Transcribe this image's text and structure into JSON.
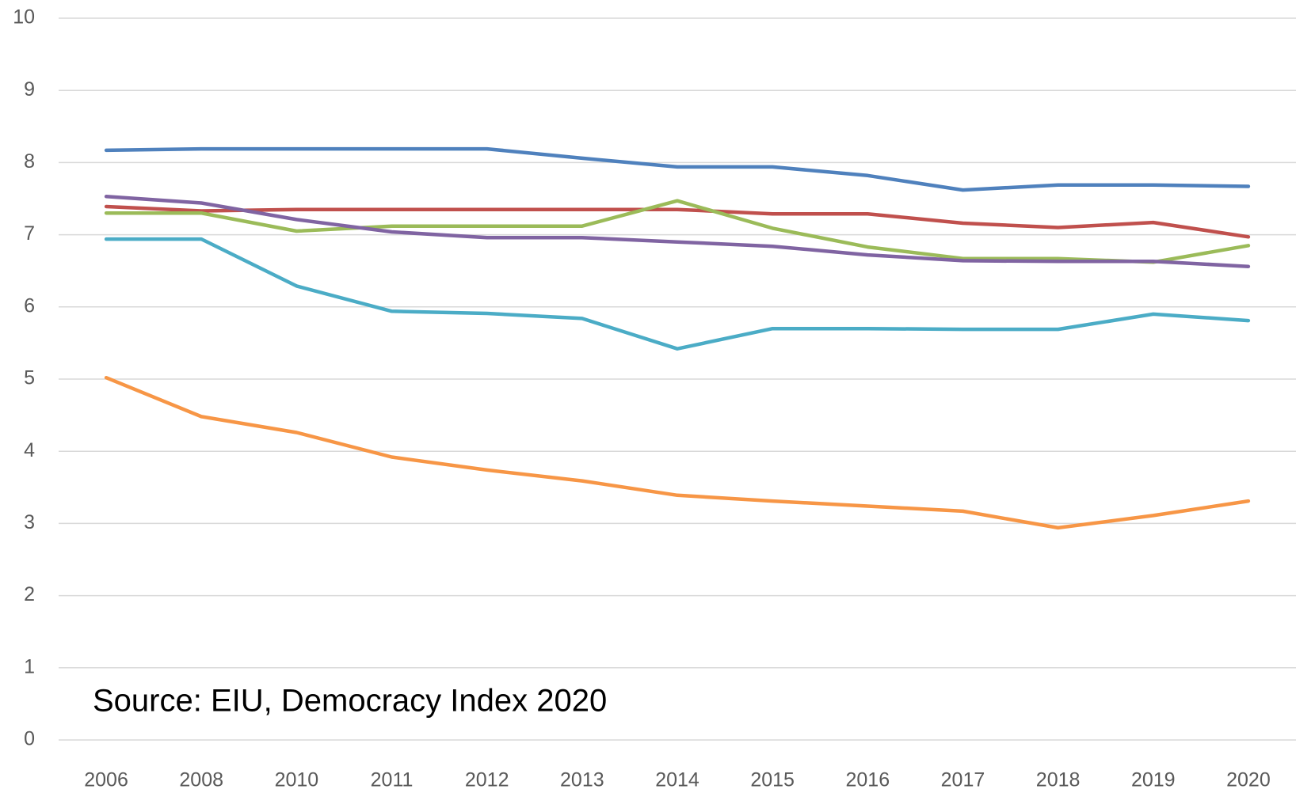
{
  "chart_data": {
    "type": "line",
    "annotation": "Source: EIU, Democracy Index 2020",
    "categories": [
      "2006",
      "2008",
      "2010",
      "2011",
      "2012",
      "2013",
      "2014",
      "2015",
      "2016",
      "2017",
      "2018",
      "2019",
      "2020"
    ],
    "series": [
      {
        "color": "#4f81bd",
        "values": [
          8.17,
          8.19,
          8.19,
          8.19,
          8.19,
          8.06,
          7.94,
          7.94,
          7.82,
          7.62,
          7.69,
          7.69,
          7.67
        ]
      },
      {
        "color": "#c0504d",
        "values": [
          7.39,
          7.33,
          7.35,
          7.35,
          7.35,
          7.35,
          7.35,
          7.29,
          7.29,
          7.16,
          7.1,
          7.17,
          6.97
        ]
      },
      {
        "color": "#9bbb59",
        "values": [
          7.3,
          7.3,
          7.05,
          7.12,
          7.12,
          7.12,
          7.47,
          7.09,
          6.83,
          6.67,
          6.67,
          6.62,
          6.85
        ]
      },
      {
        "color": "#8064a2",
        "values": [
          7.53,
          7.44,
          7.21,
          7.04,
          6.96,
          6.96,
          6.9,
          6.84,
          6.72,
          6.64,
          6.63,
          6.63,
          6.56
        ]
      },
      {
        "color": "#4bacc6",
        "values": [
          6.94,
          6.94,
          6.29,
          5.94,
          5.91,
          5.84,
          5.42,
          5.7,
          5.7,
          5.69,
          5.69,
          5.9,
          5.81
        ]
      },
      {
        "color": "#f79646",
        "values": [
          5.02,
          4.48,
          4.26,
          3.92,
          3.74,
          3.59,
          3.39,
          3.31,
          3.24,
          3.17,
          2.94,
          3.11,
          3.31
        ]
      }
    ],
    "ylim": [
      0,
      10
    ],
    "yticks": [
      0,
      1,
      2,
      3,
      4,
      5,
      6,
      7,
      8,
      9,
      10
    ],
    "grid": true
  }
}
